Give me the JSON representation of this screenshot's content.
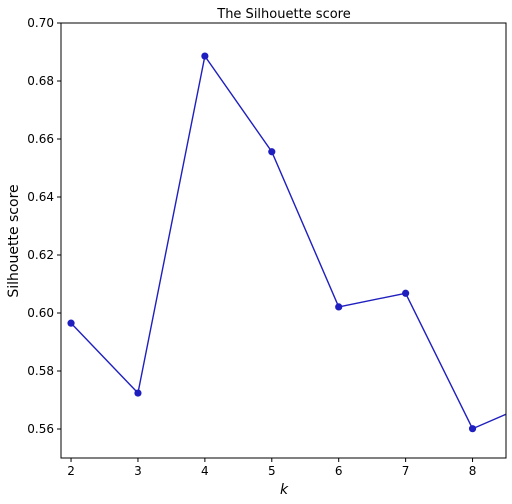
{
  "chart_data": {
    "type": "line",
    "title": "The Silhouette score",
    "xlabel": "k",
    "ylabel": "Silhouette score",
    "x": [
      2,
      3,
      4,
      5,
      6,
      7,
      8,
      9
    ],
    "series": [
      {
        "values": [
          0.5965,
          0.5724,
          0.6886,
          0.6556,
          0.6021,
          0.6068,
          0.5601,
          0.5701
        ]
      }
    ],
    "xlim": [
      1.85,
      8.5
    ],
    "ylim": [
      0.55,
      0.7
    ],
    "x_ticks": [
      "2",
      "3",
      "4",
      "5",
      "6",
      "7",
      "8"
    ],
    "y_ticks": [
      "0.56",
      "0.58",
      "0.60",
      "0.62",
      "0.64",
      "0.66",
      "0.68",
      "0.70"
    ],
    "grid": false,
    "line_color": "#1f1fbf",
    "marker": "circle"
  }
}
